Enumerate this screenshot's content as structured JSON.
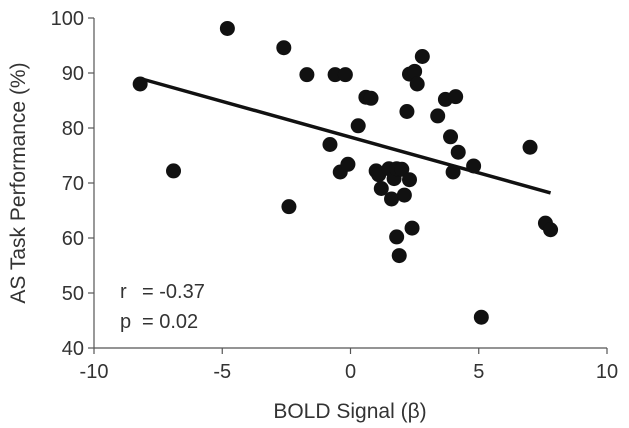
{
  "chart_data": {
    "type": "scatter",
    "title": "",
    "xlabel": "BOLD Signal (β)",
    "ylabel": "AS Task Performance (%)",
    "xlim": [
      -10,
      10
    ],
    "ylim": [
      40,
      100
    ],
    "xticks": [
      -10,
      -5,
      0,
      5,
      10
    ],
    "yticks": [
      40,
      50,
      60,
      70,
      80,
      90,
      100
    ],
    "grid": false,
    "legend": "none",
    "marker_color": "#111111",
    "line_color": "#111111",
    "points": [
      {
        "x": -8.2,
        "y": 88.0
      },
      {
        "x": -6.9,
        "y": 72.2
      },
      {
        "x": -4.8,
        "y": 98.1
      },
      {
        "x": -2.6,
        "y": 94.6
      },
      {
        "x": -2.4,
        "y": 65.7
      },
      {
        "x": -1.7,
        "y": 89.7
      },
      {
        "x": -0.8,
        "y": 77.0
      },
      {
        "x": -0.6,
        "y": 89.7
      },
      {
        "x": -0.4,
        "y": 72.0
      },
      {
        "x": -0.2,
        "y": 89.7
      },
      {
        "x": -0.1,
        "y": 73.4
      },
      {
        "x": 0.3,
        "y": 80.4
      },
      {
        "x": 0.6,
        "y": 85.6
      },
      {
        "x": 0.8,
        "y": 85.4
      },
      {
        "x": 1.0,
        "y": 72.2
      },
      {
        "x": 1.1,
        "y": 71.5
      },
      {
        "x": 1.2,
        "y": 69.0
      },
      {
        "x": 1.5,
        "y": 72.6
      },
      {
        "x": 1.6,
        "y": 67.1
      },
      {
        "x": 1.7,
        "y": 70.8
      },
      {
        "x": 1.8,
        "y": 72.6
      },
      {
        "x": 1.8,
        "y": 60.2
      },
      {
        "x": 1.9,
        "y": 56.8
      },
      {
        "x": 2.0,
        "y": 72.5
      },
      {
        "x": 2.1,
        "y": 67.8
      },
      {
        "x": 2.2,
        "y": 83.0
      },
      {
        "x": 2.3,
        "y": 70.6
      },
      {
        "x": 2.3,
        "y": 89.8
      },
      {
        "x": 2.4,
        "y": 61.8
      },
      {
        "x": 2.5,
        "y": 90.3
      },
      {
        "x": 2.6,
        "y": 88.0
      },
      {
        "x": 2.8,
        "y": 93.0
      },
      {
        "x": 3.4,
        "y": 82.2
      },
      {
        "x": 3.7,
        "y": 85.2
      },
      {
        "x": 3.9,
        "y": 78.4
      },
      {
        "x": 4.0,
        "y": 72.0
      },
      {
        "x": 4.1,
        "y": 85.7
      },
      {
        "x": 4.2,
        "y": 75.6
      },
      {
        "x": 4.8,
        "y": 73.1
      },
      {
        "x": 5.1,
        "y": 45.6
      },
      {
        "x": 7.0,
        "y": 76.5
      },
      {
        "x": 7.6,
        "y": 62.7
      },
      {
        "x": 7.8,
        "y": 61.5
      }
    ],
    "trendline": {
      "x": [
        -8.2,
        7.8
      ],
      "y": [
        89.0,
        68.2
      ]
    },
    "annotations": {
      "r_label": "r",
      "r_value": "=  -0.37",
      "p_label": "p",
      "p_value": "=   0.02"
    }
  }
}
